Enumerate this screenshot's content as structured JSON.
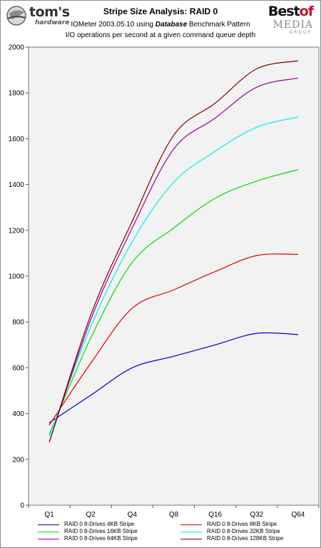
{
  "header": {
    "logo_left": {
      "word": "tom's",
      "sub": "hardware"
    },
    "logo_right": {
      "best": "Best",
      "of": "of",
      "media": "MEDIA",
      "group": "GROUP"
    }
  },
  "chart_data": {
    "type": "line",
    "title": "Stripe Size Analysis: RAID 0",
    "subtitle_line1_prefix": "IOMeter 2003.05.10 using ",
    "subtitle_line1_bold": "Database",
    "subtitle_line1_suffix": " Benchmark Pattern",
    "subtitle_line2": "I/O operations per second at a given command queue depth",
    "xlabel": "",
    "ylabel": "",
    "categories": [
      "Q1",
      "Q2",
      "Q4",
      "Q8",
      "Q16",
      "Q32",
      "Q64"
    ],
    "ylim": [
      0,
      2000
    ],
    "yticks": [
      0,
      200,
      400,
      600,
      800,
      1000,
      1200,
      1400,
      1600,
      1800,
      2000
    ],
    "grid": false,
    "legend_position": "bottom",
    "series": [
      {
        "name": "RAID 0 8-Drives 4KB Stripe",
        "color": "#0000cc",
        "values": [
          360,
          480,
          600,
          650,
          700,
          750,
          745
        ]
      },
      {
        "name": "RAID 0 8-Drives 8KB Stripe",
        "color": "#dd0000",
        "values": [
          350,
          620,
          860,
          940,
          1020,
          1090,
          1095
        ]
      },
      {
        "name": "RAID 0 8-Drives 16KB Stripe",
        "color": "#00dd00",
        "values": [
          310,
          730,
          1060,
          1210,
          1340,
          1415,
          1465
        ]
      },
      {
        "name": "RAID 0 8-Drives 32KB Stripe",
        "color": "#00eeee",
        "values": [
          300,
          780,
          1150,
          1410,
          1545,
          1650,
          1695
        ]
      },
      {
        "name": "RAID 0 8-Drives 64KB Stripe",
        "color": "#990099",
        "values": [
          275,
          810,
          1210,
          1555,
          1690,
          1825,
          1865
        ]
      },
      {
        "name": "RAID 0 8-Drives 128KB Stripe",
        "color": "#800000",
        "values": [
          275,
          830,
          1240,
          1615,
          1755,
          1905,
          1940
        ]
      }
    ]
  }
}
